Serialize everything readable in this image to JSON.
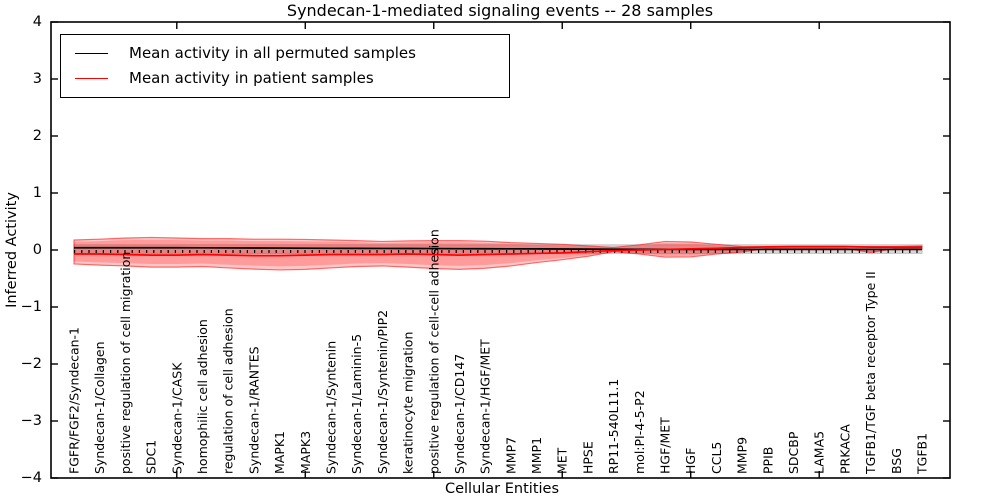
{
  "chart_data": {
    "type": "line",
    "title": "Syndecan-1-mediated signaling events -- 28 samples",
    "xlabel": "Cellular Entities",
    "ylabel": "Inferred Activity",
    "ylim": [
      -4,
      4
    ],
    "yticks": [
      4,
      3,
      2,
      1,
      0,
      -1,
      -2,
      -3,
      -4
    ],
    "grid": false,
    "legend": {
      "position": "upper-left",
      "entries": [
        {
          "label": "Mean activity in all permuted samples",
          "color": "#000000"
        },
        {
          "label": "Mean activity in patient samples",
          "color": "#ff0000"
        }
      ]
    },
    "categories": [
      "FGFR/FGF2/Syndecan-1",
      "Syndecan-1/Collagen",
      "positive regulation of cell migration",
      "SDC1",
      "Syndecan-1/CASK",
      "homophilic cell adhesion",
      "regulation of cell adhesion",
      "Syndecan-1/RANTES",
      "MAPK1",
      "MAPK3",
      "Syndecan-1/Syntenin",
      "Syndecan-1/Laminin-5",
      "Syndecan-1/Syntenin/PIP2",
      "keratinocyte migration",
      "positive regulation of cell-cell adhesion",
      "Syndecan-1/CD147",
      "Syndecan-1/HGF/MET",
      "MMP7",
      "MMP1",
      "MET",
      "HPSE",
      "RP11-540L11.1",
      "mol:PI-4-5-P2",
      "HGF/MET",
      "HGF",
      "CCL5",
      "MMP9",
      "PPIB",
      "SDCBP",
      "LAMA5",
      "PRKACA",
      "TGFB1/TGF beta receptor Type II",
      "BSG",
      "TGFB1"
    ],
    "series": [
      {
        "name": "Mean activity in all permuted samples",
        "color": "#000000",
        "values": [
          0.04,
          0.04,
          0.04,
          0.04,
          0.04,
          0.038,
          0.036,
          0.035,
          0.034,
          0.032,
          0.03,
          0.028,
          0.027,
          0.026,
          0.025,
          0.023,
          0.022,
          0.021,
          0.02,
          0.018,
          0.016,
          0.014,
          0.012,
          0.012,
          0.01,
          0.01,
          0.01,
          0.01,
          0.01,
          0.01,
          0.01,
          0.01,
          0.01,
          0.01
        ]
      },
      {
        "name": "Mean activity in patient samples",
        "color": "#ff0000",
        "values": [
          -0.07,
          -0.07,
          -0.08,
          -0.09,
          -0.09,
          -0.08,
          -0.09,
          -0.1,
          -0.1,
          -0.09,
          -0.08,
          -0.08,
          -0.08,
          -0.07,
          -0.08,
          -0.09,
          -0.08,
          -0.07,
          -0.06,
          -0.05,
          -0.03,
          -0.01,
          0.0,
          0.01,
          0.02,
          0.03,
          0.045,
          0.055,
          0.06,
          0.06,
          0.06,
          0.05,
          0.05,
          0.05
        ]
      }
    ],
    "bands": [
      {
        "name": "permuted-samples-std-band",
        "fill": "#d8d8d8",
        "edge": "#c8c8c8",
        "upper": 0.09,
        "lower": -0.06
      },
      {
        "name": "patient-samples-std-band",
        "fill": "rgba(255,0,0,0.22)",
        "edge": "rgba(255,0,0,0.55)",
        "upper": [
          0.175,
          0.19,
          0.21,
          0.22,
          0.21,
          0.2,
          0.2,
          0.19,
          0.19,
          0.185,
          0.175,
          0.165,
          0.15,
          0.16,
          0.165,
          0.165,
          0.155,
          0.13,
          0.115,
          0.1,
          0.07,
          0.045,
          0.09,
          0.15,
          0.14,
          0.1,
          0.06,
          0.055,
          0.055,
          0.055,
          0.06,
          0.06,
          0.06,
          0.07
        ],
        "lower": [
          -0.245,
          -0.265,
          -0.28,
          -0.3,
          -0.3,
          -0.29,
          -0.315,
          -0.335,
          -0.35,
          -0.34,
          -0.315,
          -0.29,
          -0.28,
          -0.3,
          -0.325,
          -0.34,
          -0.32,
          -0.28,
          -0.22,
          -0.17,
          -0.11,
          -0.03,
          -0.07,
          -0.125,
          -0.12,
          -0.07,
          -0.035,
          0.03,
          0.03,
          0.03,
          0.03,
          -0.045,
          0.03,
          0.02
        ]
      }
    ],
    "zero_line": {
      "style": "dotted",
      "color": "#000000",
      "value": 0
    },
    "xtick_every": 5,
    "xtick_offset": 4
  }
}
